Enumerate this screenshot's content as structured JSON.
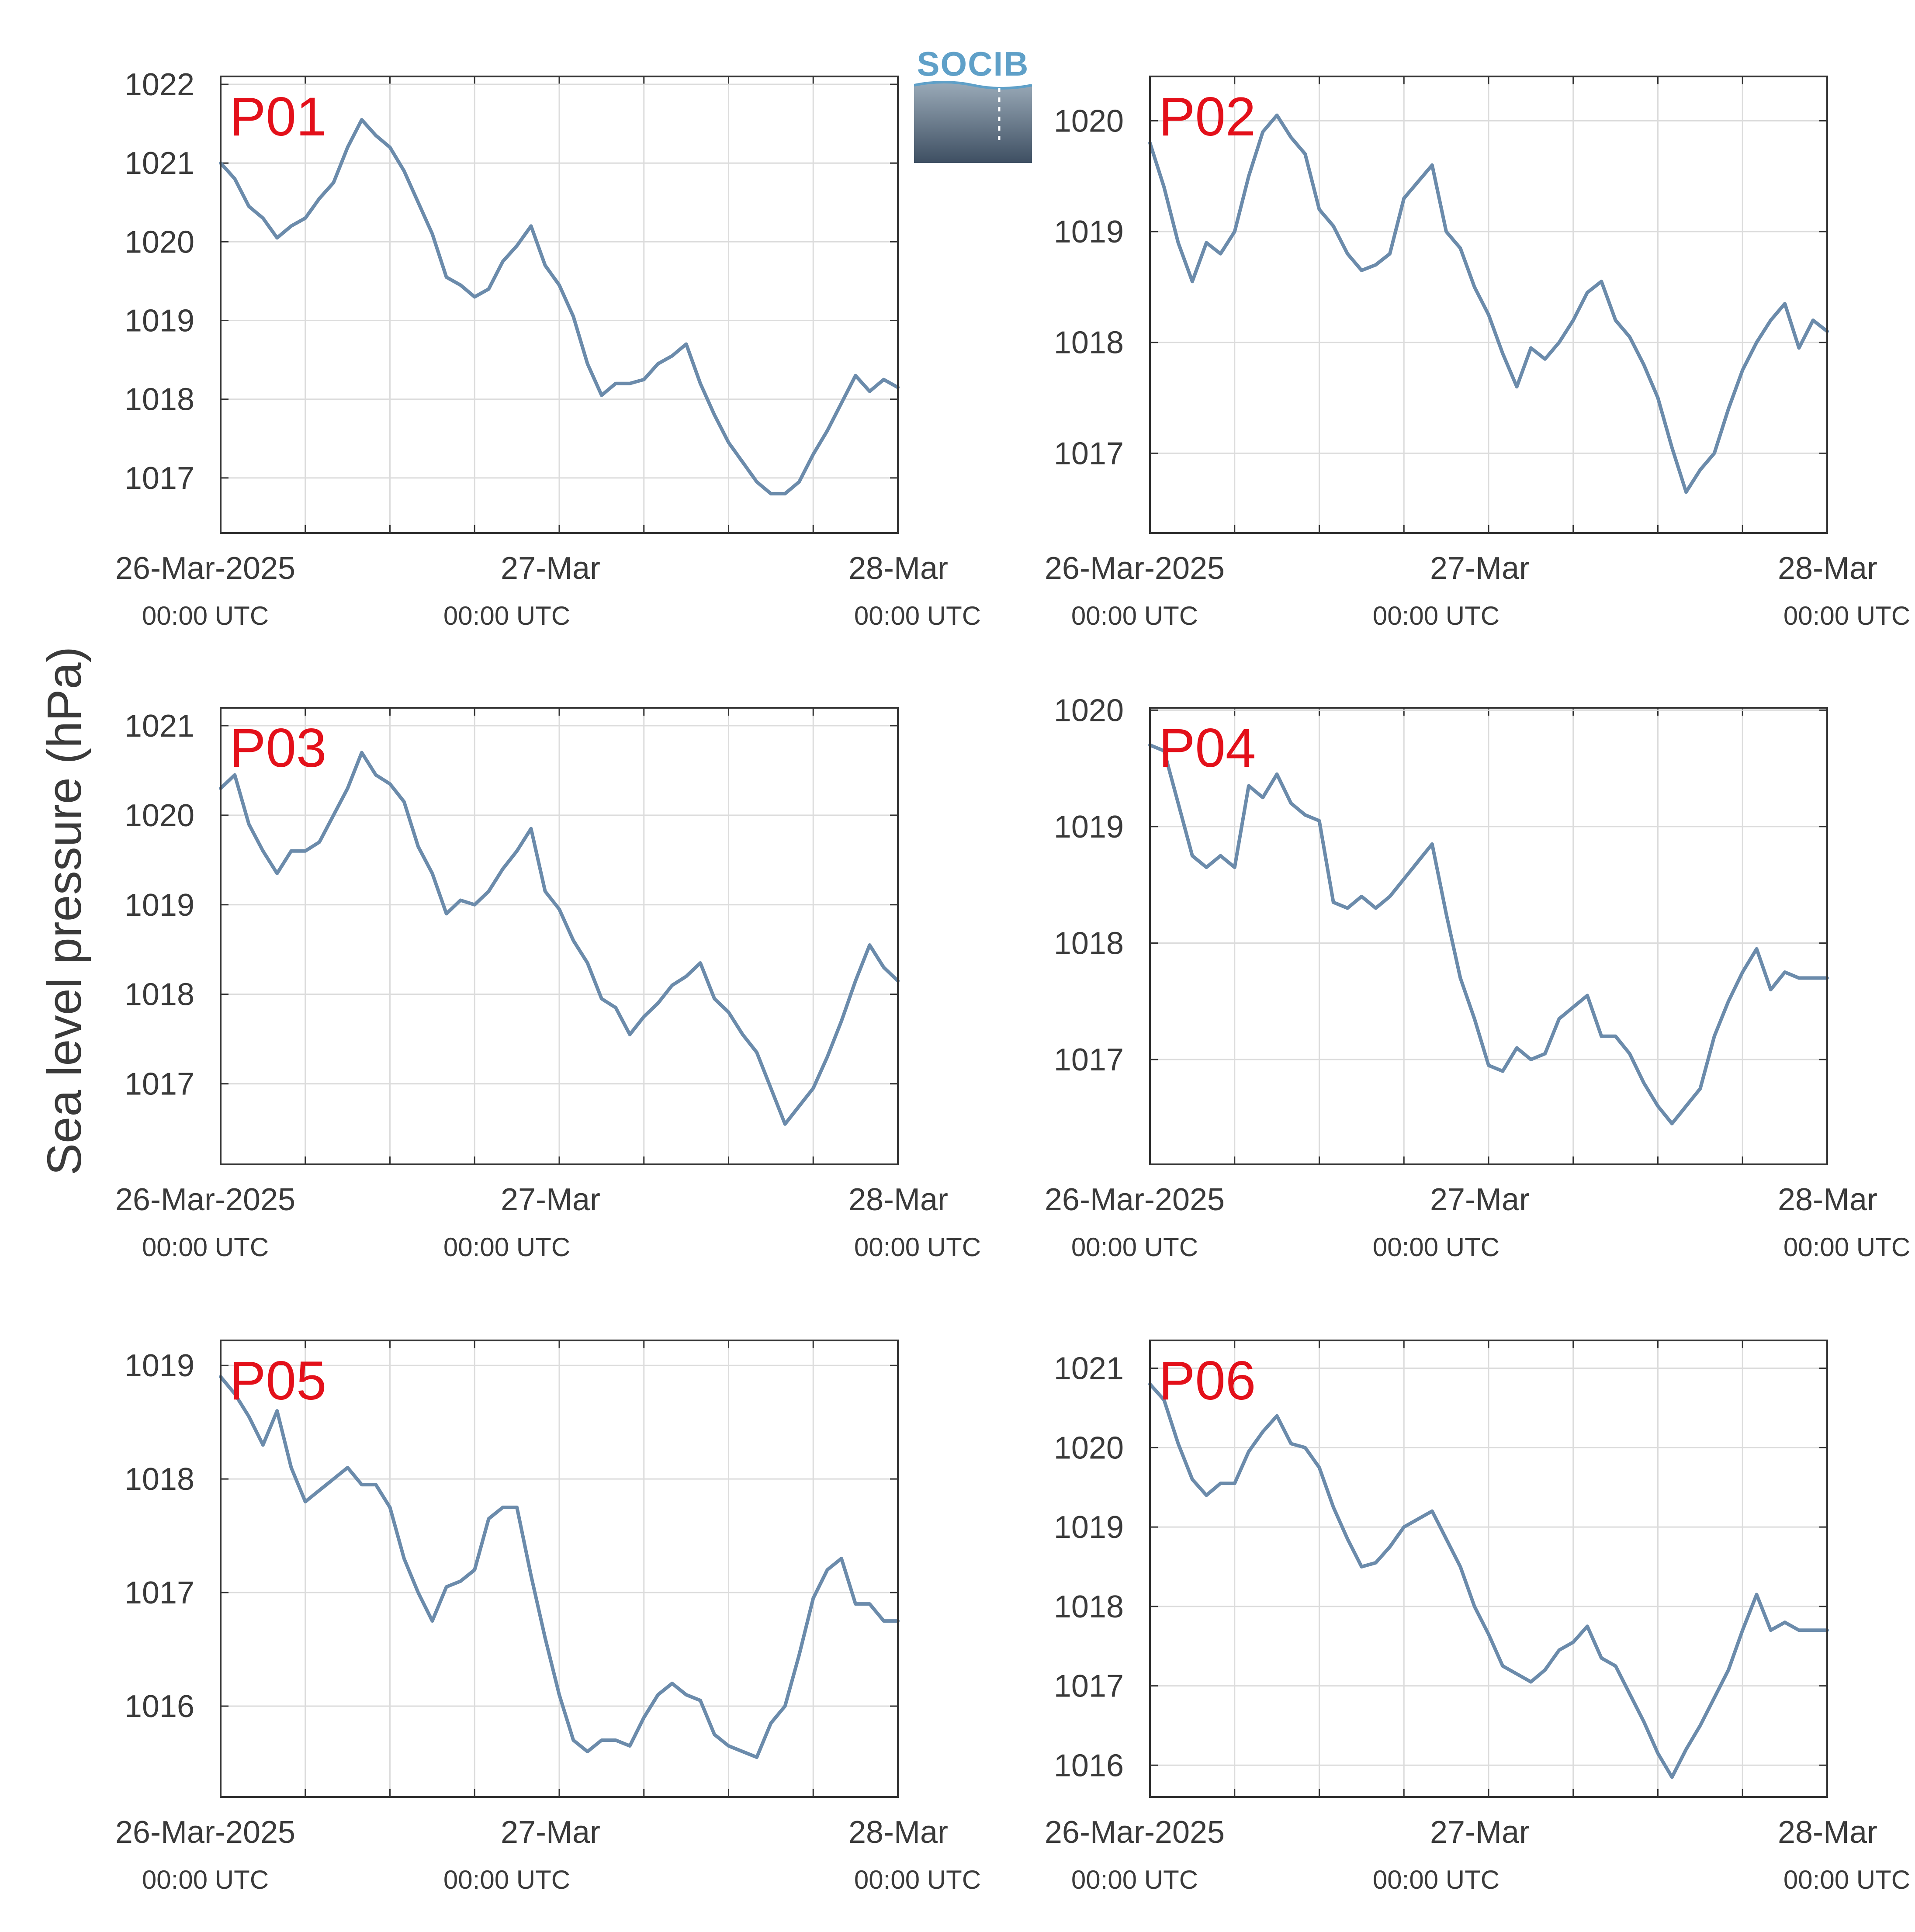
{
  "figure": {
    "ylabel": "Sea level pressure (hPa)",
    "logo_text": "SOCIB"
  },
  "style": {
    "line_color": "#6b8bab",
    "label_color": "#e3101a",
    "grid_color": "#dcdcdc",
    "axis_color": "#333333",
    "text_color": "#3a3a3a"
  },
  "chart_data": [
    {
      "type": "line",
      "label": "P01",
      "xlim": [
        "2025-03-26T00:00Z",
        "2025-03-28T00:00Z"
      ],
      "ylim": [
        1016.3,
        1022.1
      ],
      "yticks": [
        1017,
        1018,
        1019,
        1020,
        1021,
        1022
      ],
      "xticks": [
        {
          "major": "26-Mar-2025",
          "minor": "00:00 UTC"
        },
        {
          "major": "27-Mar",
          "minor": "00:00 UTC"
        },
        {
          "major": "28-Mar",
          "minor": "00:00 UTC"
        }
      ],
      "grid": true,
      "x": [
        "2025-03-26T00:00Z",
        "2025-03-26T01:00Z",
        "2025-03-26T02:00Z",
        "2025-03-26T03:00Z",
        "2025-03-26T04:00Z",
        "2025-03-26T05:00Z",
        "2025-03-26T06:00Z",
        "2025-03-26T07:00Z",
        "2025-03-26T08:00Z",
        "2025-03-26T09:00Z",
        "2025-03-26T10:00Z",
        "2025-03-26T11:00Z",
        "2025-03-26T12:00Z",
        "2025-03-26T13:00Z",
        "2025-03-26T14:00Z",
        "2025-03-26T15:00Z",
        "2025-03-26T16:00Z",
        "2025-03-26T17:00Z",
        "2025-03-26T18:00Z",
        "2025-03-26T19:00Z",
        "2025-03-26T20:00Z",
        "2025-03-26T21:00Z",
        "2025-03-26T22:00Z",
        "2025-03-26T23:00Z",
        "2025-03-27T00:00Z",
        "2025-03-27T01:00Z",
        "2025-03-27T02:00Z",
        "2025-03-27T03:00Z",
        "2025-03-27T04:00Z",
        "2025-03-27T05:00Z",
        "2025-03-27T06:00Z",
        "2025-03-27T07:00Z",
        "2025-03-27T08:00Z",
        "2025-03-27T09:00Z",
        "2025-03-27T10:00Z",
        "2025-03-27T11:00Z",
        "2025-03-27T12:00Z",
        "2025-03-27T13:00Z",
        "2025-03-27T14:00Z",
        "2025-03-27T15:00Z",
        "2025-03-27T16:00Z",
        "2025-03-27T17:00Z",
        "2025-03-27T18:00Z",
        "2025-03-27T19:00Z",
        "2025-03-27T20:00Z",
        "2025-03-27T21:00Z",
        "2025-03-27T22:00Z",
        "2025-03-27T23:00Z",
        "2025-03-28T00:00Z"
      ],
      "y": [
        1021.0,
        1020.8,
        1020.45,
        1020.3,
        1020.05,
        1020.2,
        1020.3,
        1020.55,
        1020.75,
        1021.2,
        1021.55,
        1021.35,
        1021.2,
        1020.9,
        1020.5,
        1020.1,
        1019.55,
        1019.45,
        1019.3,
        1019.4,
        1019.75,
        1019.95,
        1020.2,
        1019.7,
        1019.45,
        1019.05,
        1018.45,
        1018.05,
        1018.2,
        1018.2,
        1018.25,
        1018.45,
        1018.55,
        1018.7,
        1018.2,
        1017.8,
        1017.45,
        1017.2,
        1016.95,
        1016.8,
        1016.8,
        1016.95,
        1017.3,
        1017.6,
        1017.95,
        1018.3,
        1018.1,
        1018.25,
        1018.15
      ]
    },
    {
      "type": "line",
      "label": "P02",
      "xlim": [
        "2025-03-26T00:00Z",
        "2025-03-28T00:00Z"
      ],
      "ylim": [
        1016.28,
        1020.4
      ],
      "yticks": [
        1017,
        1018,
        1019,
        1020
      ],
      "xticks": [
        {
          "major": "26-Mar-2025",
          "minor": "00:00 UTC"
        },
        {
          "major": "27-Mar",
          "minor": "00:00 UTC"
        },
        {
          "major": "28-Mar",
          "minor": "00:00 UTC"
        }
      ],
      "grid": true,
      "x": [
        "2025-03-26T00:00Z",
        "2025-03-26T01:00Z",
        "2025-03-26T02:00Z",
        "2025-03-26T03:00Z",
        "2025-03-26T04:00Z",
        "2025-03-26T05:00Z",
        "2025-03-26T06:00Z",
        "2025-03-26T07:00Z",
        "2025-03-26T08:00Z",
        "2025-03-26T09:00Z",
        "2025-03-26T10:00Z",
        "2025-03-26T11:00Z",
        "2025-03-26T12:00Z",
        "2025-03-26T13:00Z",
        "2025-03-26T14:00Z",
        "2025-03-26T15:00Z",
        "2025-03-26T16:00Z",
        "2025-03-26T17:00Z",
        "2025-03-26T18:00Z",
        "2025-03-26T19:00Z",
        "2025-03-26T20:00Z",
        "2025-03-26T21:00Z",
        "2025-03-26T22:00Z",
        "2025-03-26T23:00Z",
        "2025-03-27T00:00Z",
        "2025-03-27T01:00Z",
        "2025-03-27T02:00Z",
        "2025-03-27T03:00Z",
        "2025-03-27T04:00Z",
        "2025-03-27T05:00Z",
        "2025-03-27T06:00Z",
        "2025-03-27T07:00Z",
        "2025-03-27T08:00Z",
        "2025-03-27T09:00Z",
        "2025-03-27T10:00Z",
        "2025-03-27T11:00Z",
        "2025-03-27T12:00Z",
        "2025-03-27T13:00Z",
        "2025-03-27T14:00Z",
        "2025-03-27T15:00Z",
        "2025-03-27T16:00Z",
        "2025-03-27T17:00Z",
        "2025-03-27T18:00Z",
        "2025-03-27T19:00Z",
        "2025-03-27T20:00Z",
        "2025-03-27T21:00Z",
        "2025-03-27T22:00Z",
        "2025-03-27T23:00Z",
        "2025-03-28T00:00Z"
      ],
      "y": [
        1019.8,
        1019.4,
        1018.9,
        1018.55,
        1018.9,
        1018.8,
        1019.0,
        1019.5,
        1019.9,
        1020.05,
        1019.85,
        1019.7,
        1019.2,
        1019.05,
        1018.8,
        1018.65,
        1018.7,
        1018.8,
        1019.3,
        1019.45,
        1019.6,
        1019.0,
        1018.85,
        1018.5,
        1018.25,
        1017.9,
        1017.6,
        1017.95,
        1017.85,
        1018.0,
        1018.2,
        1018.45,
        1018.55,
        1018.2,
        1018.05,
        1017.8,
        1017.5,
        1017.05,
        1016.65,
        1016.85,
        1017.0,
        1017.4,
        1017.75,
        1018.0,
        1018.2,
        1018.35,
        1017.95,
        1018.2,
        1018.1
      ]
    },
    {
      "type": "line",
      "label": "P03",
      "xlim": [
        "2025-03-26T00:00Z",
        "2025-03-28T00:00Z"
      ],
      "ylim": [
        1016.1,
        1021.2
      ],
      "yticks": [
        1017,
        1018,
        1019,
        1020,
        1021
      ],
      "xticks": [
        {
          "major": "26-Mar-2025",
          "minor": "00:00 UTC"
        },
        {
          "major": "27-Mar",
          "minor": "00:00 UTC"
        },
        {
          "major": "28-Mar",
          "minor": "00:00 UTC"
        }
      ],
      "grid": true,
      "x": [
        "2025-03-26T00:00Z",
        "2025-03-26T01:00Z",
        "2025-03-26T02:00Z",
        "2025-03-26T03:00Z",
        "2025-03-26T04:00Z",
        "2025-03-26T05:00Z",
        "2025-03-26T06:00Z",
        "2025-03-26T07:00Z",
        "2025-03-26T08:00Z",
        "2025-03-26T09:00Z",
        "2025-03-26T10:00Z",
        "2025-03-26T11:00Z",
        "2025-03-26T12:00Z",
        "2025-03-26T13:00Z",
        "2025-03-26T14:00Z",
        "2025-03-26T15:00Z",
        "2025-03-26T16:00Z",
        "2025-03-26T17:00Z",
        "2025-03-26T18:00Z",
        "2025-03-26T19:00Z",
        "2025-03-26T20:00Z",
        "2025-03-26T21:00Z",
        "2025-03-26T22:00Z",
        "2025-03-26T23:00Z",
        "2025-03-27T00:00Z",
        "2025-03-27T01:00Z",
        "2025-03-27T02:00Z",
        "2025-03-27T03:00Z",
        "2025-03-27T04:00Z",
        "2025-03-27T05:00Z",
        "2025-03-27T06:00Z",
        "2025-03-27T07:00Z",
        "2025-03-27T08:00Z",
        "2025-03-27T09:00Z",
        "2025-03-27T10:00Z",
        "2025-03-27T11:00Z",
        "2025-03-27T12:00Z",
        "2025-03-27T13:00Z",
        "2025-03-27T14:00Z",
        "2025-03-27T15:00Z",
        "2025-03-27T16:00Z",
        "2025-03-27T17:00Z",
        "2025-03-27T18:00Z",
        "2025-03-27T19:00Z",
        "2025-03-27T20:00Z",
        "2025-03-27T21:00Z",
        "2025-03-27T22:00Z",
        "2025-03-27T23:00Z",
        "2025-03-28T00:00Z"
      ],
      "y": [
        1020.3,
        1020.45,
        1019.9,
        1019.6,
        1019.35,
        1019.6,
        1019.6,
        1019.7,
        1020.0,
        1020.3,
        1020.7,
        1020.45,
        1020.35,
        1020.15,
        1019.65,
        1019.35,
        1018.9,
        1019.05,
        1019.0,
        1019.15,
        1019.4,
        1019.6,
        1019.85,
        1019.15,
        1018.95,
        1018.6,
        1018.35,
        1017.95,
        1017.85,
        1017.55,
        1017.75,
        1017.9,
        1018.1,
        1018.2,
        1018.35,
        1017.95,
        1017.8,
        1017.55,
        1017.35,
        1016.95,
        1016.55,
        1016.75,
        1016.95,
        1017.3,
        1017.7,
        1018.15,
        1018.55,
        1018.3,
        1018.15
      ]
    },
    {
      "type": "line",
      "label": "P04",
      "xlim": [
        "2025-03-26T00:00Z",
        "2025-03-28T00:00Z"
      ],
      "ylim": [
        1016.1,
        1020.02
      ],
      "yticks": [
        1017,
        1018,
        1019,
        1020
      ],
      "xticks": [
        {
          "major": "26-Mar-2025",
          "minor": "00:00 UTC"
        },
        {
          "major": "27-Mar",
          "minor": "00:00 UTC"
        },
        {
          "major": "28-Mar",
          "minor": "00:00 UTC"
        }
      ],
      "grid": true,
      "x": [
        "2025-03-26T00:00Z",
        "2025-03-26T01:00Z",
        "2025-03-26T02:00Z",
        "2025-03-26T03:00Z",
        "2025-03-26T04:00Z",
        "2025-03-26T05:00Z",
        "2025-03-26T06:00Z",
        "2025-03-26T07:00Z",
        "2025-03-26T08:00Z",
        "2025-03-26T09:00Z",
        "2025-03-26T10:00Z",
        "2025-03-26T11:00Z",
        "2025-03-26T12:00Z",
        "2025-03-26T13:00Z",
        "2025-03-26T14:00Z",
        "2025-03-26T15:00Z",
        "2025-03-26T16:00Z",
        "2025-03-26T17:00Z",
        "2025-03-26T18:00Z",
        "2025-03-26T19:00Z",
        "2025-03-26T20:00Z",
        "2025-03-26T21:00Z",
        "2025-03-26T22:00Z",
        "2025-03-26T23:00Z",
        "2025-03-27T00:00Z",
        "2025-03-27T01:00Z",
        "2025-03-27T02:00Z",
        "2025-03-27T03:00Z",
        "2025-03-27T04:00Z",
        "2025-03-27T05:00Z",
        "2025-03-27T06:00Z",
        "2025-03-27T07:00Z",
        "2025-03-27T08:00Z",
        "2025-03-27T09:00Z",
        "2025-03-27T10:00Z",
        "2025-03-27T11:00Z",
        "2025-03-27T12:00Z",
        "2025-03-27T13:00Z",
        "2025-03-27T14:00Z",
        "2025-03-27T15:00Z",
        "2025-03-27T16:00Z",
        "2025-03-27T17:00Z",
        "2025-03-27T18:00Z",
        "2025-03-27T19:00Z",
        "2025-03-27T20:00Z",
        "2025-03-27T21:00Z",
        "2025-03-27T22:00Z",
        "2025-03-27T23:00Z",
        "2025-03-28T00:00Z"
      ],
      "y": [
        1019.7,
        1019.65,
        1019.2,
        1018.75,
        1018.65,
        1018.75,
        1018.65,
        1019.35,
        1019.25,
        1019.45,
        1019.2,
        1019.1,
        1019.05,
        1018.35,
        1018.3,
        1018.4,
        1018.3,
        1018.4,
        1018.55,
        1018.7,
        1018.85,
        1018.25,
        1017.7,
        1017.35,
        1016.95,
        1016.9,
        1017.1,
        1017.0,
        1017.05,
        1017.35,
        1017.45,
        1017.55,
        1017.2,
        1017.2,
        1017.05,
        1016.8,
        1016.6,
        1016.45,
        1016.6,
        1016.75,
        1017.2,
        1017.5,
        1017.75,
        1017.95,
        1017.6,
        1017.75,
        1017.7,
        1017.7,
        1017.7
      ]
    },
    {
      "type": "line",
      "label": "P05",
      "xlim": [
        "2025-03-26T00:00Z",
        "2025-03-28T00:00Z"
      ],
      "ylim": [
        1015.2,
        1019.22
      ],
      "yticks": [
        1016,
        1017,
        1018,
        1019
      ],
      "xticks": [
        {
          "major": "26-Mar-2025",
          "minor": "00:00 UTC"
        },
        {
          "major": "27-Mar",
          "minor": "00:00 UTC"
        },
        {
          "major": "28-Mar",
          "minor": "00:00 UTC"
        }
      ],
      "grid": true,
      "x": [
        "2025-03-26T00:00Z",
        "2025-03-26T01:00Z",
        "2025-03-26T02:00Z",
        "2025-03-26T03:00Z",
        "2025-03-26T04:00Z",
        "2025-03-26T05:00Z",
        "2025-03-26T06:00Z",
        "2025-03-26T07:00Z",
        "2025-03-26T08:00Z",
        "2025-03-26T09:00Z",
        "2025-03-26T10:00Z",
        "2025-03-26T11:00Z",
        "2025-03-26T12:00Z",
        "2025-03-26T13:00Z",
        "2025-03-26T14:00Z",
        "2025-03-26T15:00Z",
        "2025-03-26T16:00Z",
        "2025-03-26T17:00Z",
        "2025-03-26T18:00Z",
        "2025-03-26T19:00Z",
        "2025-03-26T20:00Z",
        "2025-03-26T21:00Z",
        "2025-03-26T22:00Z",
        "2025-03-26T23:00Z",
        "2025-03-27T00:00Z",
        "2025-03-27T01:00Z",
        "2025-03-27T02:00Z",
        "2025-03-27T03:00Z",
        "2025-03-27T04:00Z",
        "2025-03-27T05:00Z",
        "2025-03-27T06:00Z",
        "2025-03-27T07:00Z",
        "2025-03-27T08:00Z",
        "2025-03-27T09:00Z",
        "2025-03-27T10:00Z",
        "2025-03-27T11:00Z",
        "2025-03-27T12:00Z",
        "2025-03-27T13:00Z",
        "2025-03-27T14:00Z",
        "2025-03-27T15:00Z",
        "2025-03-27T16:00Z",
        "2025-03-27T17:00Z",
        "2025-03-27T18:00Z",
        "2025-03-27T19:00Z",
        "2025-03-27T20:00Z",
        "2025-03-27T21:00Z",
        "2025-03-27T22:00Z",
        "2025-03-27T23:00Z",
        "2025-03-28T00:00Z"
      ],
      "y": [
        1018.9,
        1018.75,
        1018.55,
        1018.3,
        1018.6,
        1018.1,
        1017.8,
        1017.9,
        1018.0,
        1018.1,
        1017.95,
        1017.95,
        1017.75,
        1017.3,
        1017.0,
        1016.75,
        1017.05,
        1017.1,
        1017.2,
        1017.65,
        1017.75,
        1017.75,
        1017.15,
        1016.6,
        1016.1,
        1015.7,
        1015.6,
        1015.7,
        1015.7,
        1015.65,
        1015.9,
        1016.1,
        1016.2,
        1016.1,
        1016.05,
        1015.75,
        1015.65,
        1015.6,
        1015.55,
        1015.85,
        1016.0,
        1016.45,
        1016.95,
        1017.2,
        1017.3,
        1016.9,
        1016.9,
        1016.75,
        1016.75
      ]
    },
    {
      "type": "line",
      "label": "P06",
      "xlim": [
        "2025-03-26T00:00Z",
        "2025-03-28T00:00Z"
      ],
      "ylim": [
        1015.6,
        1021.35
      ],
      "yticks": [
        1016,
        1017,
        1018,
        1019,
        1020,
        1021
      ],
      "xticks": [
        {
          "major": "26-Mar-2025",
          "minor": "00:00 UTC"
        },
        {
          "major": "27-Mar",
          "minor": "00:00 UTC"
        },
        {
          "major": "28-Mar",
          "minor": "00:00 UTC"
        }
      ],
      "grid": true,
      "x": [
        "2025-03-26T00:00Z",
        "2025-03-26T01:00Z",
        "2025-03-26T02:00Z",
        "2025-03-26T03:00Z",
        "2025-03-26T04:00Z",
        "2025-03-26T05:00Z",
        "2025-03-26T06:00Z",
        "2025-03-26T07:00Z",
        "2025-03-26T08:00Z",
        "2025-03-26T09:00Z",
        "2025-03-26T10:00Z",
        "2025-03-26T11:00Z",
        "2025-03-26T12:00Z",
        "2025-03-26T13:00Z",
        "2025-03-26T14:00Z",
        "2025-03-26T15:00Z",
        "2025-03-26T16:00Z",
        "2025-03-26T17:00Z",
        "2025-03-26T18:00Z",
        "2025-03-26T19:00Z",
        "2025-03-26T20:00Z",
        "2025-03-26T21:00Z",
        "2025-03-26T22:00Z",
        "2025-03-26T23:00Z",
        "2025-03-27T00:00Z",
        "2025-03-27T01:00Z",
        "2025-03-27T02:00Z",
        "2025-03-27T03:00Z",
        "2025-03-27T04:00Z",
        "2025-03-27T05:00Z",
        "2025-03-27T06:00Z",
        "2025-03-27T07:00Z",
        "2025-03-27T08:00Z",
        "2025-03-27T09:00Z",
        "2025-03-27T10:00Z",
        "2025-03-27T11:00Z",
        "2025-03-27T12:00Z",
        "2025-03-27T13:00Z",
        "2025-03-27T14:00Z",
        "2025-03-27T15:00Z",
        "2025-03-27T16:00Z",
        "2025-03-27T17:00Z",
        "2025-03-27T18:00Z",
        "2025-03-27T19:00Z",
        "2025-03-27T20:00Z",
        "2025-03-27T21:00Z",
        "2025-03-27T22:00Z",
        "2025-03-27T23:00Z",
        "2025-03-28T00:00Z"
      ],
      "y": [
        1020.8,
        1020.6,
        1020.05,
        1019.6,
        1019.4,
        1019.55,
        1019.55,
        1019.95,
        1020.2,
        1020.4,
        1020.05,
        1020.0,
        1019.75,
        1019.25,
        1018.85,
        1018.5,
        1018.55,
        1018.75,
        1019.0,
        1019.1,
        1019.2,
        1018.85,
        1018.5,
        1018.0,
        1017.65,
        1017.25,
        1017.15,
        1017.05,
        1017.2,
        1017.45,
        1017.55,
        1017.75,
        1017.35,
        1017.25,
        1016.9,
        1016.55,
        1016.15,
        1015.85,
        1016.2,
        1016.5,
        1016.85,
        1017.2,
        1017.7,
        1018.15,
        1017.7,
        1017.8,
        1017.7,
        1017.7,
        1017.7
      ]
    }
  ]
}
